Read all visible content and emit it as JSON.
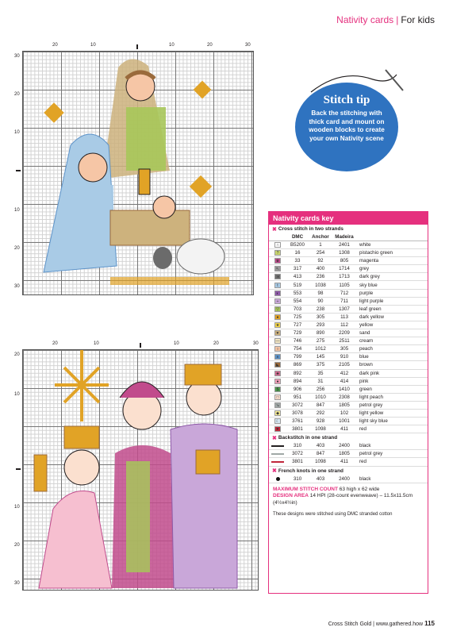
{
  "header": {
    "section": "Nativity cards",
    "separator": "|",
    "subsection": "For kids"
  },
  "top_chart": {
    "top_numbers": [
      "20",
      "10",
      "",
      "10",
      "20",
      "30"
    ],
    "side_numbers": [
      "30",
      "20",
      "10",
      "",
      "10",
      "20",
      "30"
    ]
  },
  "bottom_chart": {
    "top_numbers": [
      "20",
      "10",
      "",
      "10",
      "20",
      "30"
    ],
    "side_numbers": [
      "20",
      "10",
      "",
      "10",
      "20",
      "30"
    ]
  },
  "stitch_tip": {
    "title": "Stitch tip",
    "body": "Back the stitching with thick card and mount on wooden blocks to create your own Nativity scene"
  },
  "key": {
    "title": "Nativity cards key",
    "cross_section": "Cross stitch in two strands",
    "headers": {
      "dmc": "DMC",
      "anchor": "Anchor",
      "madeira": "Madeira"
    },
    "cross_rows": [
      {
        "sym": "∩",
        "color": "#ffffff",
        "dmc": "B5200",
        "anchor": "1",
        "madeira": "2401",
        "name": "white"
      },
      {
        "sym": "?",
        "color": "#c9d66e",
        "dmc": "16",
        "anchor": "254",
        "madeira": "1308",
        "name": "pistachio green"
      },
      {
        "sym": "♛",
        "color": "#c14b8c",
        "dmc": "33",
        "anchor": "92",
        "madeira": "805",
        "name": "magenta"
      },
      {
        "sym": "↖",
        "color": "#9a9a9a",
        "dmc": "317",
        "anchor": "400",
        "madeira": "1714",
        "name": "grey"
      },
      {
        "sym": "◑",
        "color": "#6b6b6b",
        "dmc": "413",
        "anchor": "236",
        "madeira": "1713",
        "name": "dark grey"
      },
      {
        "sym": "t",
        "color": "#a9cbe6",
        "dmc": "519",
        "anchor": "1038",
        "madeira": "1105",
        "name": "sky blue"
      },
      {
        "sym": "◐",
        "color": "#8e5aa8",
        "dmc": "553",
        "anchor": "98",
        "madeira": "712",
        "name": "purple"
      },
      {
        "sym": "÷",
        "color": "#c9a7d9",
        "dmc": "554",
        "anchor": "90",
        "madeira": "711",
        "name": "light purple"
      },
      {
        "sym": "▽",
        "color": "#a7c65a",
        "dmc": "703",
        "anchor": "238",
        "madeira": "1307",
        "name": "leaf green"
      },
      {
        "sym": "●",
        "color": "#e1a326",
        "dmc": "725",
        "anchor": "305",
        "madeira": "113",
        "name": "dark yellow"
      },
      {
        "sym": "★",
        "color": "#f2d54a",
        "dmc": "727",
        "anchor": "293",
        "madeira": "112",
        "name": "yellow"
      },
      {
        "sym": "♥",
        "color": "#cdb27d",
        "dmc": "729",
        "anchor": "890",
        "madeira": "2209",
        "name": "sand"
      },
      {
        "sym": "—",
        "color": "#f3e7c4",
        "dmc": "746",
        "anchor": "275",
        "madeira": "2511",
        "name": "cream"
      },
      {
        "sym": "○",
        "color": "#f6c6a6",
        "dmc": "754",
        "anchor": "1012",
        "madeira": "305",
        "name": "peach"
      },
      {
        "sym": "∧",
        "color": "#5d93c9",
        "dmc": "799",
        "anchor": "145",
        "madeira": "910",
        "name": "blue"
      },
      {
        "sym": "◣",
        "color": "#9a6a3b",
        "dmc": "869",
        "anchor": "375",
        "madeira": "2105",
        "name": "brown"
      },
      {
        "sym": "♣",
        "color": "#d46d93",
        "dmc": "892",
        "anchor": "35",
        "madeira": "412",
        "name": "dark pink"
      },
      {
        "sym": "●",
        "color": "#ef9db8",
        "dmc": "894",
        "anchor": "31",
        "madeira": "414",
        "name": "pink"
      },
      {
        "sym": "$",
        "color": "#4e9c4d",
        "dmc": "906",
        "anchor": "256",
        "madeira": "1410",
        "name": "green"
      },
      {
        "sym": "□",
        "color": "#fbe0cf",
        "dmc": "951",
        "anchor": "1010",
        "madeira": "2308",
        "name": "light peach"
      },
      {
        "sym": "↘",
        "color": "#a0a8a6",
        "dmc": "3072",
        "anchor": "847",
        "madeira": "1805",
        "name": "petrol grey"
      },
      {
        "sym": "◆",
        "color": "#f8ee96",
        "dmc": "3078",
        "anchor": "292",
        "madeira": "102",
        "name": "light yellow"
      },
      {
        "sym": "☾",
        "color": "#d6e8f3",
        "dmc": "3761",
        "anchor": "928",
        "madeira": "1001",
        "name": "light sky blue"
      },
      {
        "sym": "♥",
        "color": "#c0263b",
        "dmc": "3801",
        "anchor": "1098",
        "madeira": "411",
        "name": "red"
      }
    ],
    "back_section": "Backstitch in one strand",
    "back_rows": [
      {
        "color": "#231f20",
        "dmc": "310",
        "anchor": "403",
        "madeira": "2400",
        "name": "black"
      },
      {
        "color": "#a0a8a6",
        "dmc": "3072",
        "anchor": "847",
        "madeira": "1805",
        "name": "petrol grey"
      },
      {
        "color": "#c0263b",
        "dmc": "3801",
        "anchor": "1098",
        "madeira": "411",
        "name": "red"
      }
    ],
    "french_section": "French knots in one strand",
    "french_rows": [
      {
        "color": "#111111",
        "dmc": "310",
        "anchor": "403",
        "madeira": "2400",
        "name": "black"
      }
    ],
    "max_label": "MAXIMUM STITCH COUNT",
    "max_value": "63 high x 62 wide",
    "area_label": "DESIGN AREA",
    "area_value": "14 HPI (28-count evenweave) – 11.5x11.5cm (4½x4½in)",
    "note": "These designs were stitched using DMC stranded cotton"
  },
  "footer": {
    "text": "Cross Stitch Gold | www.gathered.how",
    "page": "115"
  }
}
